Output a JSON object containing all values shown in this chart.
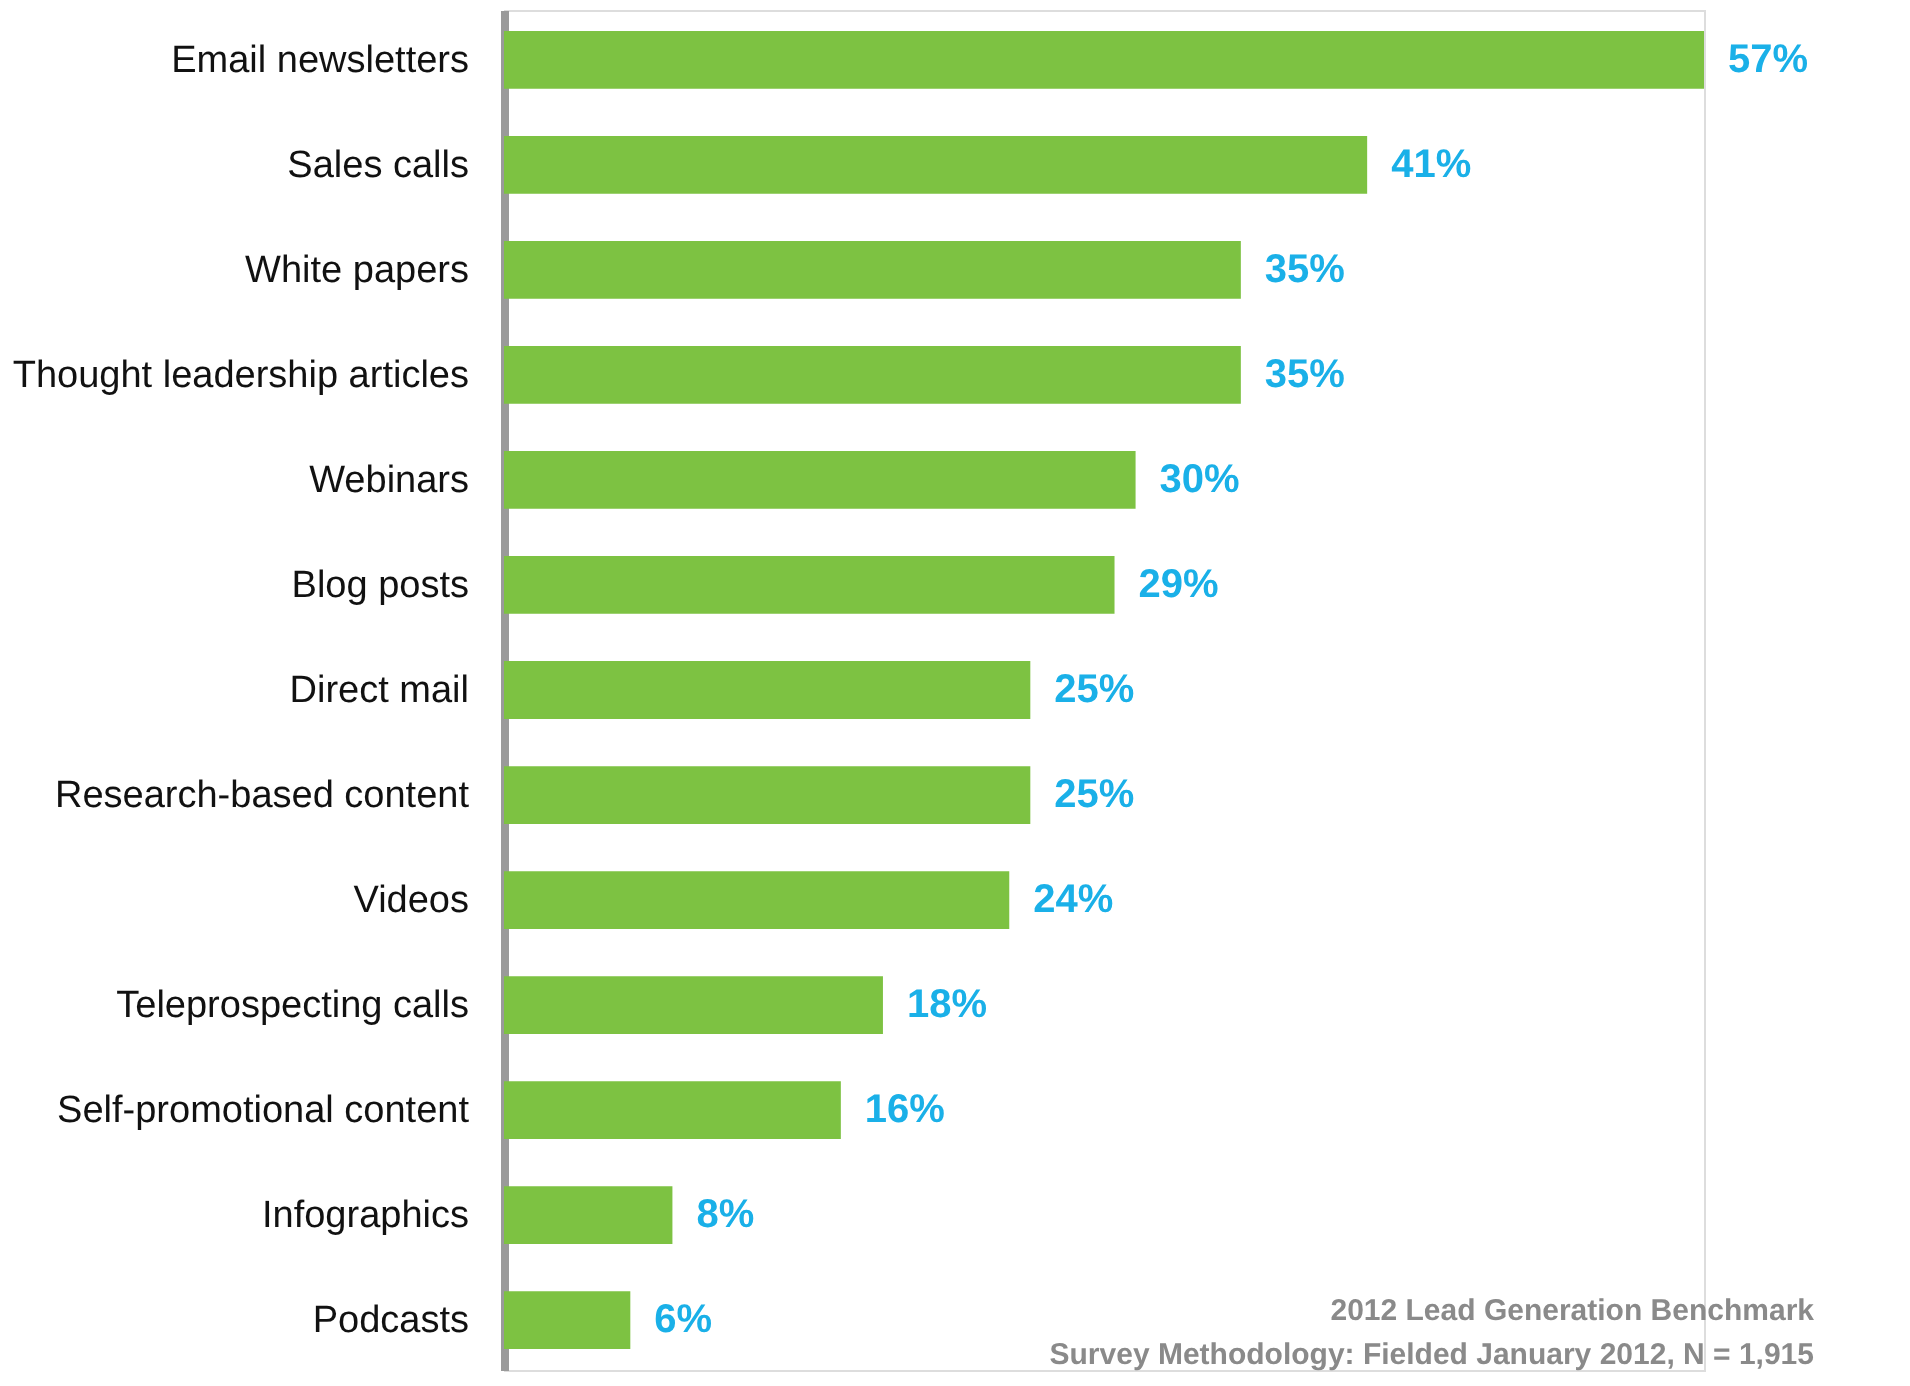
{
  "chart_data": {
    "type": "bar",
    "orientation": "horizontal",
    "categories": [
      "Email newsletters",
      "Sales calls",
      "White papers",
      "Thought leadership articles",
      "Webinars",
      "Blog posts",
      "Direct mail",
      "Research-based content",
      "Videos",
      "Teleprospecting calls",
      "Self-promotional content",
      "Infographics",
      "Podcasts"
    ],
    "values": [
      57,
      41,
      35,
      35,
      30,
      29,
      25,
      25,
      24,
      18,
      16,
      8,
      6
    ],
    "value_labels": [
      "57%",
      "41%",
      "35%",
      "35%",
      "30%",
      "29%",
      "25%",
      "25%",
      "24%",
      "18%",
      "16%",
      "8%",
      "6%"
    ],
    "color": "#7dc242",
    "annotations": [
      "2012 Lead Generation Benchmark",
      "Survey Methodology: Fielded January 2012, N = 1,915"
    ]
  }
}
